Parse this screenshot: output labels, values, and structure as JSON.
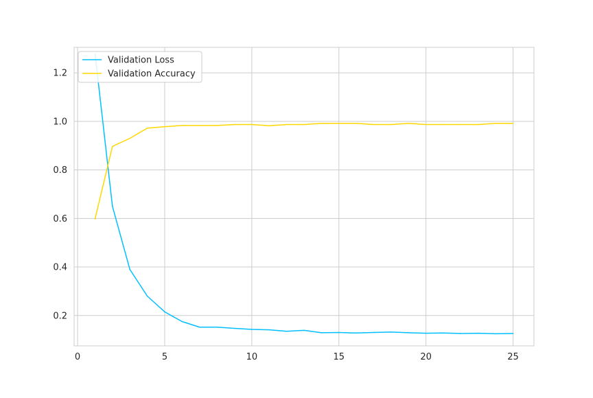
{
  "chart_data": {
    "type": "line",
    "title": "",
    "xlabel": "",
    "ylabel": "",
    "xlim": [
      -0.2,
      26.2
    ],
    "ylim": [
      0.075,
      1.305
    ],
    "xticks": [
      0,
      5,
      10,
      15,
      20,
      25
    ],
    "yticks": [
      0.2,
      0.4,
      0.6,
      0.8,
      1.0,
      1.2
    ],
    "xtick_labels": [
      "0",
      "5",
      "10",
      "15",
      "20",
      "25"
    ],
    "ytick_labels": [
      "0.2",
      "0.4",
      "0.6",
      "0.8",
      "1.0",
      "1.2"
    ],
    "grid": true,
    "legend_position": "top-left",
    "x": [
      1,
      2,
      3,
      4,
      5,
      6,
      7,
      8,
      9,
      10,
      11,
      12,
      13,
      14,
      15,
      16,
      17,
      18,
      19,
      20,
      21,
      22,
      23,
      24,
      25
    ],
    "series": [
      {
        "name": "Validation Loss",
        "color": "#00bfff",
        "values": [
          1.28,
          0.65,
          0.39,
          0.28,
          0.215,
          0.175,
          0.152,
          0.152,
          0.147,
          0.143,
          0.141,
          0.135,
          0.139,
          0.129,
          0.13,
          0.128,
          0.13,
          0.132,
          0.129,
          0.127,
          0.128,
          0.126,
          0.127,
          0.125,
          0.126
        ]
      },
      {
        "name": "Validation Accuracy",
        "color": "#ffd700",
        "values": [
          0.598,
          0.897,
          0.93,
          0.972,
          0.978,
          0.983,
          0.983,
          0.983,
          0.987,
          0.987,
          0.982,
          0.987,
          0.987,
          0.992,
          0.992,
          0.992,
          0.987,
          0.987,
          0.992,
          0.987,
          0.987,
          0.987,
          0.987,
          0.992,
          0.992
        ]
      }
    ]
  }
}
